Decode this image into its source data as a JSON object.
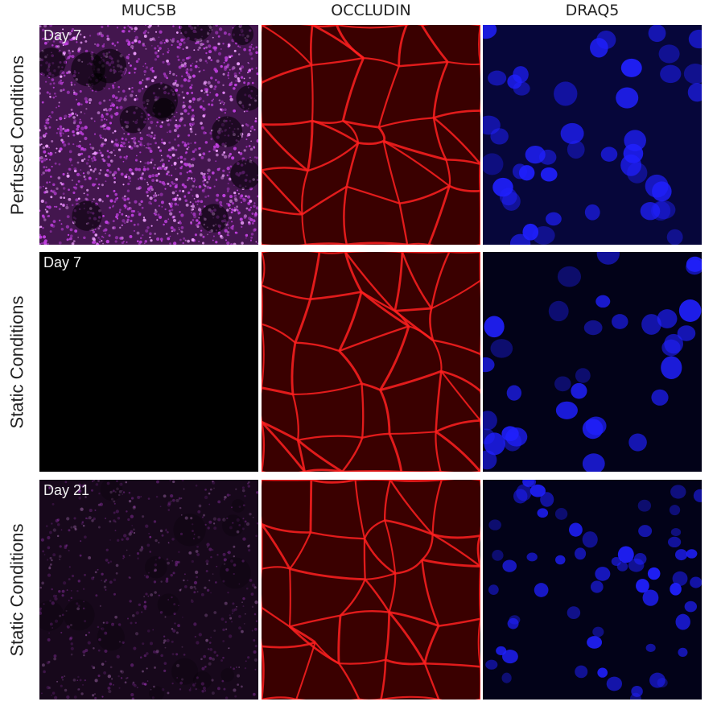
{
  "columns": [
    "MUC5B",
    "OCCLUDIN",
    "DRAQ5"
  ],
  "rows": [
    {
      "condition": "Perfused Conditions",
      "day": "Day 7",
      "muc5b_signal": "high"
    },
    {
      "condition": "Static Conditions",
      "day": "Day 7",
      "muc5b_signal": "none"
    },
    {
      "condition": "Static Conditions",
      "day": "Day 21",
      "muc5b_signal": "low"
    }
  ],
  "colors": {
    "muc5b": "#c040e0",
    "occludin": "#ff2020",
    "draq5": "#2020ff",
    "background": "#000000"
  }
}
